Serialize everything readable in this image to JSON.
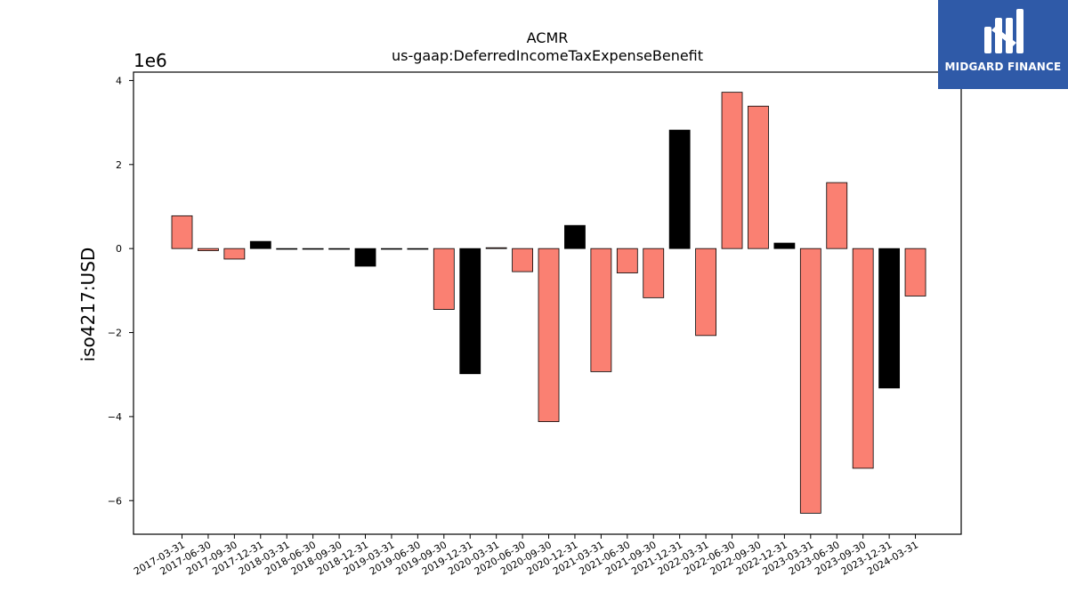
{
  "chart_data": {
    "type": "bar",
    "title": "ACMR",
    "subtitle": "us-gaap:DeferredIncomeTaxExpenseBenefit",
    "xlabel": "",
    "ylabel": "iso4217:USD",
    "y_offset_label": "1e6",
    "ylim": [
      -6.8,
      4.2
    ],
    "yticks": [
      {
        "value": 4,
        "label": "4"
      },
      {
        "value": 2,
        "label": "2"
      },
      {
        "value": 0,
        "label": "0"
      },
      {
        "value": -2,
        "label": "−2"
      },
      {
        "value": -4,
        "label": "−4"
      },
      {
        "value": -6,
        "label": "−6"
      }
    ],
    "grid": false,
    "legend": "none",
    "colors": {
      "quarter": "#fa8072",
      "year_end": "#000000"
    },
    "categories": [
      "2017-03-31",
      "2017-06-30",
      "2017-09-30",
      "2017-12-31",
      "2018-03-31",
      "2018-06-30",
      "2018-09-30",
      "2018-12-31",
      "2019-03-31",
      "2019-06-30",
      "2019-09-30",
      "2019-12-31",
      "2020-03-31",
      "2020-06-30",
      "2020-09-30",
      "2020-12-31",
      "2021-03-31",
      "2021-06-30",
      "2021-09-30",
      "2021-12-31",
      "2022-03-31",
      "2022-06-30",
      "2022-09-30",
      "2022-12-31",
      "2023-03-31",
      "2023-06-30",
      "2023-09-30",
      "2023-12-31",
      "2024-03-31"
    ],
    "values": [
      0.78,
      -0.05,
      -0.25,
      0.17,
      -0.01,
      -0.01,
      -0.01,
      -0.42,
      -0.01,
      -0.01,
      -1.45,
      -2.98,
      0.02,
      -0.55,
      -4.12,
      0.55,
      -2.93,
      -0.58,
      -1.17,
      2.82,
      -2.07,
      3.72,
      3.39,
      0.13,
      -6.3,
      1.57,
      -5.23,
      -3.32,
      -1.13
    ]
  },
  "brand": {
    "name": "MIDGARD FINANCE",
    "logo_icon": "midgard-finance-logo-icon",
    "background": "#2f5aa8"
  }
}
